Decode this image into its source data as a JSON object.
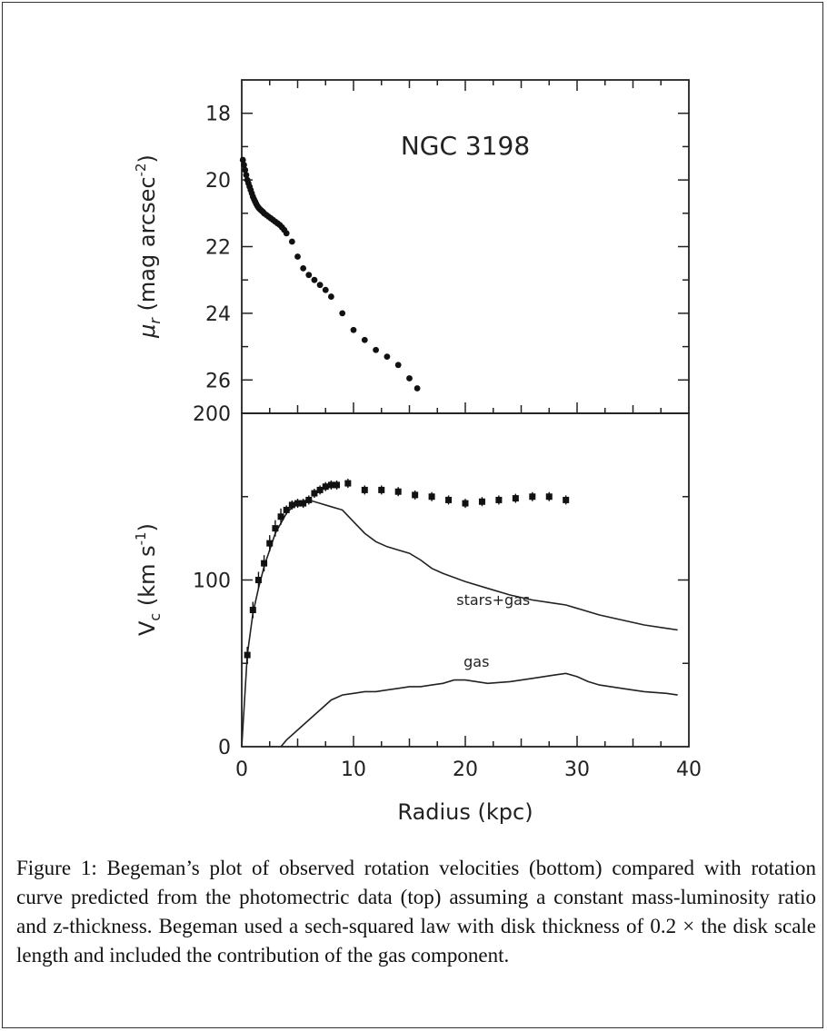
{
  "chart_data": [
    {
      "type": "scatter",
      "panel": "top",
      "title": "NGC 3198",
      "ylabel": "μr (mag arcsec-2)",
      "xlim": [
        0,
        40
      ],
      "ylim": [
        17,
        27
      ],
      "y_inverted": true,
      "yticks": [
        18,
        20,
        22,
        24,
        26
      ],
      "grid": false,
      "series": [
        {
          "x": [
            0.1,
            0.2,
            0.3,
            0.4,
            0.5,
            0.6,
            0.7,
            0.8,
            0.9,
            1.0,
            1.1,
            1.2,
            1.3,
            1.4,
            1.5,
            1.6,
            1.7,
            1.8,
            1.9,
            2.0,
            2.2,
            2.4,
            2.6,
            2.8,
            3.0,
            3.2,
            3.4,
            3.6,
            3.8,
            4.0,
            4.5,
            5.0,
            5.5,
            6.0,
            6.5,
            7.0,
            7.5,
            8.0,
            9.0,
            10.0,
            11.0,
            12.0,
            13.0,
            14.0,
            15.0,
            15.7
          ],
          "y": [
            19.4,
            19.55,
            19.7,
            19.85,
            20.0,
            20.1,
            20.2,
            20.3,
            20.4,
            20.5,
            20.58,
            20.65,
            20.72,
            20.78,
            20.83,
            20.87,
            20.9,
            20.93,
            20.96,
            21.0,
            21.05,
            21.1,
            21.15,
            21.2,
            21.25,
            21.3,
            21.35,
            21.42,
            21.5,
            21.6,
            21.85,
            22.3,
            22.65,
            22.85,
            23.0,
            23.15,
            23.3,
            23.5,
            24.0,
            24.5,
            24.8,
            25.1,
            25.3,
            25.55,
            25.95,
            26.25
          ]
        }
      ]
    },
    {
      "type": "line",
      "panel": "bottom",
      "xlabel": "Radius (kpc)",
      "ylabel": "Vc (km s-1)",
      "xlim": [
        0,
        40
      ],
      "ylim": [
        0,
        200
      ],
      "xticks": [
        0,
        10,
        20,
        30,
        40
      ],
      "yticks": [
        0,
        100,
        200
      ],
      "grid": false,
      "observed": {
        "x": [
          0.5,
          1.0,
          1.5,
          2.0,
          2.5,
          3.0,
          3.5,
          4.0,
          4.5,
          5.0,
          5.5,
          6.0,
          6.5,
          7.0,
          7.5,
          8.0,
          8.5,
          9.5,
          11.0,
          12.5,
          14.0,
          15.5,
          17.0,
          18.5,
          20.0,
          21.5,
          23.0,
          24.5,
          26.0,
          27.5,
          29.0
        ],
        "y": [
          55,
          82,
          100,
          110,
          122,
          131,
          138,
          142,
          145,
          146,
          146,
          148,
          152,
          154,
          156,
          157,
          157,
          158,
          154,
          154,
          153,
          151,
          150,
          148,
          146,
          147,
          148,
          149,
          150,
          150,
          148
        ]
      },
      "series": [
        {
          "name": "stars+gas",
          "x": [
            0,
            0.5,
            1.0,
            1.5,
            2.0,
            3.0,
            4.0,
            5.0,
            6.0,
            7.0,
            8.0,
            9.0,
            10.0,
            11.0,
            12.0,
            13.0,
            14.0,
            15.0,
            16.0,
            17.0,
            18.0,
            20.0,
            22.0,
            24.0,
            26.0,
            28.0,
            29.0,
            30.0,
            32.0,
            34.0,
            36.0,
            38.0,
            39.0
          ],
          "y": [
            0,
            55,
            80,
            95,
            108,
            128,
            140,
            147,
            148,
            146,
            144,
            142,
            135,
            128,
            123,
            120,
            118,
            116,
            112,
            107,
            104,
            99,
            95,
            91,
            88,
            86,
            85,
            83,
            79,
            76,
            73,
            71,
            70
          ]
        },
        {
          "name": "gas",
          "x": [
            3.5,
            4.0,
            5.0,
            6.0,
            7.0,
            8.0,
            9.0,
            10.0,
            11.0,
            12.0,
            13.0,
            14.0,
            15.0,
            16.0,
            17.0,
            18.0,
            19.0,
            20.0,
            21.0,
            22.0,
            24.0,
            26.0,
            28.0,
            29.0,
            30.0,
            31.0,
            32.0,
            34.0,
            36.0,
            38.0,
            39.0
          ],
          "y": [
            0,
            4,
            10,
            16,
            22,
            28,
            31,
            32,
            33,
            33,
            34,
            35,
            36,
            36,
            37,
            38,
            40,
            40,
            39,
            38,
            39,
            41,
            43,
            44,
            42,
            39,
            37,
            35,
            33,
            32,
            31
          ]
        }
      ],
      "annotations": [
        "stars+gas",
        "gas"
      ]
    }
  ],
  "caption": "Figure 1: Begeman’s plot of observed rotation velocities (bottom) compared with rotation curve predicted from the photomectric data (top) assuming a constant mass-luminosity ratio and z-thickness. Begeman used a sech-squared law with disk thickness of 0.2 × the disk scale length and included the contribution of the gas component."
}
